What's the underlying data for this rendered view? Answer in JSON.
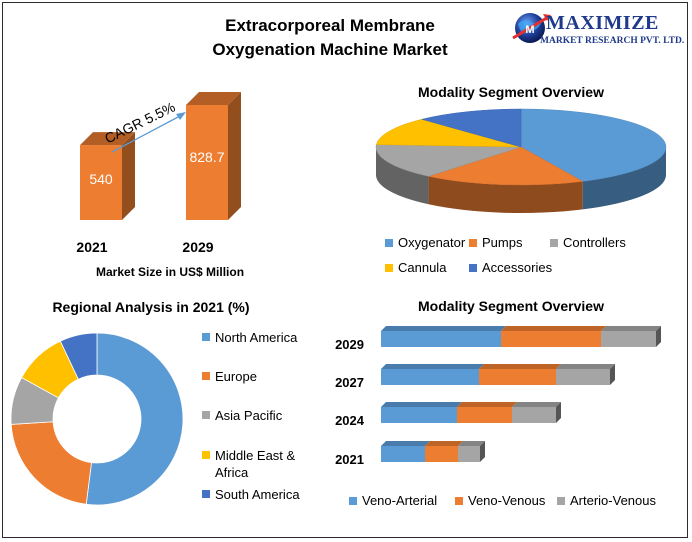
{
  "header": {
    "title_line1": "Extracorporeal Membrane",
    "title_line2": "Oxygenation Machine Market"
  },
  "logo": {
    "name": "MAXIMIZE",
    "tagline": "MARKET RESEARCH PVT. LTD.",
    "icon": "globe-icon"
  },
  "colors": {
    "blue": "#5b9bd5",
    "orange": "#ed7d31",
    "gray": "#a5a5a5",
    "yellow": "#ffc000",
    "darkblue": "#4472c4"
  },
  "chart_data": [
    {
      "id": "market_size",
      "type": "bar",
      "categories": [
        "2021",
        "2029"
      ],
      "values": [
        540,
        828.7
      ],
      "value_labels": [
        "540",
        "828.7"
      ],
      "annotation": "CAGR 5.5%",
      "xlabel": "Market Size in US$ Million",
      "style": "3d"
    },
    {
      "id": "modality_pie",
      "type": "pie",
      "title": "Modality  Segment Overview",
      "labels": [
        "Oxygenator",
        "Pumps",
        "Controllers",
        "Cannula",
        "Accessories"
      ],
      "values": [
        43,
        18,
        15,
        12,
        12
      ],
      "colors": [
        "#5b9bd5",
        "#ed7d31",
        "#a5a5a5",
        "#ffc000",
        "#4472c4"
      ],
      "style": "3d",
      "legend": "bottom"
    },
    {
      "id": "regional_donut",
      "type": "pie",
      "title": "Regional Analysis in 2021 (%)",
      "labels": [
        "North America",
        "Europe",
        "Asia Pacific",
        "Middle East & Africa",
        "South America"
      ],
      "legend_lines": [
        [
          "North America"
        ],
        [
          "Europe"
        ],
        [
          "Asia Pacific"
        ],
        [
          "Middle East &",
          "Africa"
        ],
        [
          "South America"
        ]
      ],
      "values": [
        52,
        22,
        9,
        10,
        7
      ],
      "colors": [
        "#5b9bd5",
        "#ed7d31",
        "#a5a5a5",
        "#ffc000",
        "#4472c4"
      ],
      "style": "donut",
      "legend": "right"
    },
    {
      "id": "modality_stacked",
      "type": "bar",
      "orientation": "horizontal",
      "stacked": true,
      "title": "Modality  Segment Overview",
      "categories": [
        "2029",
        "2027",
        "2024",
        "2021"
      ],
      "series": [
        {
          "name": "Veno-Arterial",
          "values": [
            120,
            98,
            76,
            44
          ],
          "color": "#5b9bd5"
        },
        {
          "name": "Veno-Venous",
          "values": [
            100,
            77,
            55,
            33
          ],
          "color": "#ed7d31"
        },
        {
          "name": "Arterio-Venous",
          "values": [
            55,
            54,
            44,
            22
          ],
          "color": "#a5a5a5"
        }
      ],
      "legend": "bottom"
    }
  ]
}
